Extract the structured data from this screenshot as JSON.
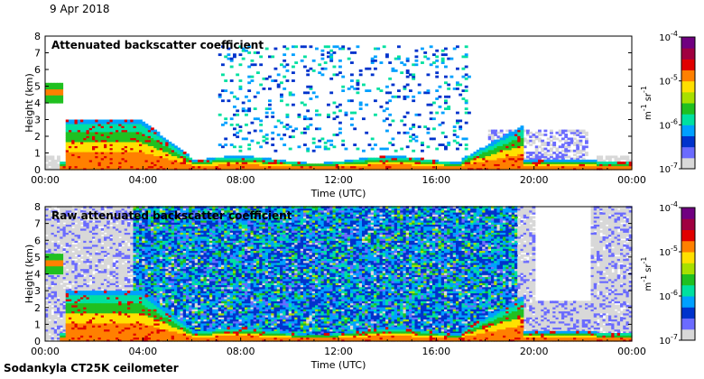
{
  "header": {
    "date": "9 Apr 2018"
  },
  "footer": {
    "instrument": "Sodankyla CT25K ceilometer"
  },
  "colorbar": {
    "tick_labels": [
      "10-4",
      "10-5",
      "10-6",
      "10-7"
    ],
    "unit": "m-1 sr-1",
    "colors": [
      "#d8d8d8",
      "#6b6bff",
      "#0033cc",
      "#00a0ff",
      "#00e0a0",
      "#20c020",
      "#a8e000",
      "#ffe000",
      "#ff8000",
      "#e00000",
      "#a00040",
      "#700080"
    ]
  },
  "chart_data": [
    {
      "type": "heatmap",
      "title": "Attenuated backscatter coefficient",
      "xlabel": "Time (UTC)",
      "ylabel": "Height (km)",
      "x_ticks": [
        "00:00",
        "04:00",
        "08:00",
        "12:00",
        "16:00",
        "20:00",
        "00:00"
      ],
      "y_ticks": [
        "0",
        "1",
        "2",
        "3",
        "4",
        "5",
        "6",
        "7",
        "8"
      ],
      "xlim": [
        0,
        24
      ],
      "ylim": [
        0,
        8
      ],
      "colorbar_range": [
        1e-07,
        0.0001
      ],
      "colorbar_scale": "log"
    },
    {
      "type": "heatmap",
      "title": "Raw attenuated backscatter coefficient",
      "xlabel": "Time (UTC)",
      "ylabel": "Height (km)",
      "x_ticks": [
        "00:00",
        "04:00",
        "08:00",
        "12:00",
        "16:00",
        "20:00",
        "00:00"
      ],
      "y_ticks": [
        "0",
        "1",
        "2",
        "3",
        "4",
        "5",
        "6",
        "7",
        "8"
      ],
      "xlim": [
        0,
        24
      ],
      "ylim": [
        0,
        8
      ],
      "colorbar_range": [
        1e-07,
        0.0001
      ],
      "colorbar_scale": "log"
    }
  ]
}
